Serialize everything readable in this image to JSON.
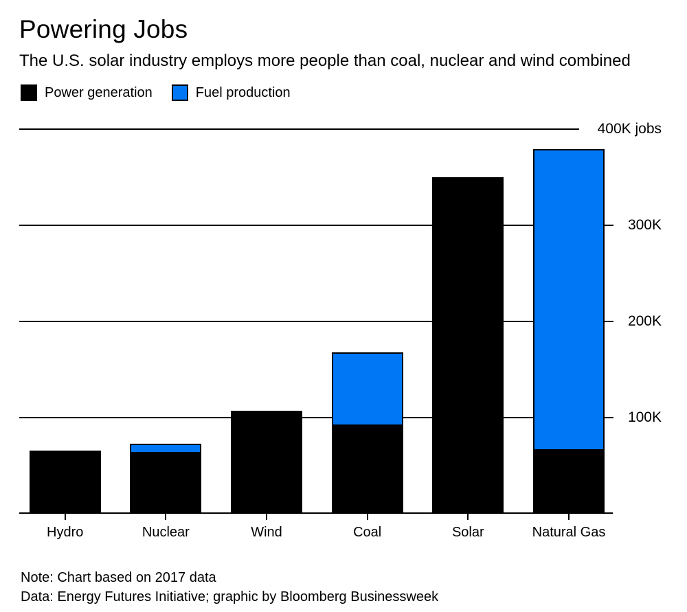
{
  "header": {
    "title": "Powering Jobs",
    "subtitle": "The U.S. solar industry employs more people than coal, nuclear and wind combined"
  },
  "legend": [
    {
      "label": "Power generation",
      "color": "#000000"
    },
    {
      "label": "Fuel production",
      "color": "#0077f5"
    }
  ],
  "footer": {
    "note": "Note: Chart based on 2017 data",
    "source": "Data: Energy Futures Initiative; graphic by Bloomberg Businessweek"
  },
  "chart_data": {
    "type": "bar",
    "stacked": true,
    "title": "Powering Jobs",
    "unit": "jobs",
    "categories": [
      "Hydro",
      "Nuclear",
      "Wind",
      "Coal",
      "Solar",
      "Natural Gas"
    ],
    "series": [
      {
        "name": "Power generation",
        "color": "#000000",
        "values": [
          66000,
          64000,
          107000,
          93000,
          350000,
          67000
        ]
      },
      {
        "name": "Fuel production",
        "color": "#0077f5",
        "values": [
          0,
          9000,
          0,
          75000,
          0,
          312000
        ]
      }
    ],
    "totals": [
      66000,
      73000,
      107000,
      168000,
      350000,
      379000
    ],
    "ylim": [
      0,
      400000
    ],
    "yticks": [
      {
        "value": 400000,
        "label": "400K jobs"
      },
      {
        "value": 300000,
        "label": "300K"
      },
      {
        "value": 200000,
        "label": "200K"
      },
      {
        "value": 100000,
        "label": "100K"
      }
    ],
    "grid": true,
    "gridlines_behind_bars": true,
    "legend_position": "top",
    "bar_outline_color": "#000000"
  }
}
